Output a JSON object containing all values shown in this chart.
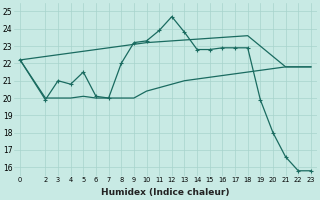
{
  "background_color": "#c8eae4",
  "grid_color": "#a8d4cc",
  "line_color": "#1a6b60",
  "xlabel": "Humidex (Indice chaleur)",
  "ylim": [
    15.5,
    25.5
  ],
  "xlim": [
    -0.5,
    23.5
  ],
  "yticks": [
    16,
    17,
    18,
    19,
    20,
    21,
    22,
    23,
    24,
    25
  ],
  "xticks": [
    0,
    2,
    3,
    4,
    5,
    6,
    7,
    8,
    9,
    10,
    11,
    12,
    13,
    14,
    15,
    16,
    17,
    18,
    19,
    20,
    21,
    22,
    23
  ],
  "line1_x": [
    0,
    2,
    3,
    4,
    5,
    6,
    7,
    8,
    9,
    10,
    11,
    12,
    13,
    14,
    15,
    16,
    17,
    18,
    21,
    22,
    23
  ],
  "line1_y": [
    22.2,
    22.4,
    22.5,
    22.6,
    22.7,
    22.8,
    22.9,
    23.0,
    23.1,
    23.2,
    23.25,
    23.3,
    23.35,
    23.4,
    23.45,
    23.5,
    23.55,
    23.6,
    21.8,
    21.8,
    21.8
  ],
  "line2_x": [
    0,
    2,
    3,
    4,
    5,
    6,
    7,
    8,
    9,
    10,
    11,
    12,
    13,
    14,
    15,
    16,
    17,
    18,
    19,
    20,
    21,
    22,
    23
  ],
  "line2_y": [
    22.2,
    19.9,
    21.0,
    20.8,
    21.5,
    20.1,
    20.0,
    22.0,
    23.2,
    23.3,
    23.9,
    24.7,
    23.8,
    22.8,
    22.8,
    22.9,
    22.9,
    22.9,
    19.9,
    18.0,
    16.6,
    15.8,
    15.8
  ],
  "line3_x": [
    0,
    2,
    3,
    4,
    5,
    6,
    7,
    8,
    9,
    10,
    11,
    12,
    13,
    14,
    15,
    16,
    17,
    18,
    19,
    20,
    21,
    22,
    23
  ],
  "line3_y": [
    22.2,
    20.0,
    20.0,
    20.0,
    20.1,
    20.0,
    20.0,
    20.0,
    20.0,
    20.4,
    20.6,
    20.8,
    21.0,
    21.1,
    21.2,
    21.3,
    21.4,
    21.5,
    21.6,
    21.7,
    21.8,
    21.8,
    21.8
  ]
}
